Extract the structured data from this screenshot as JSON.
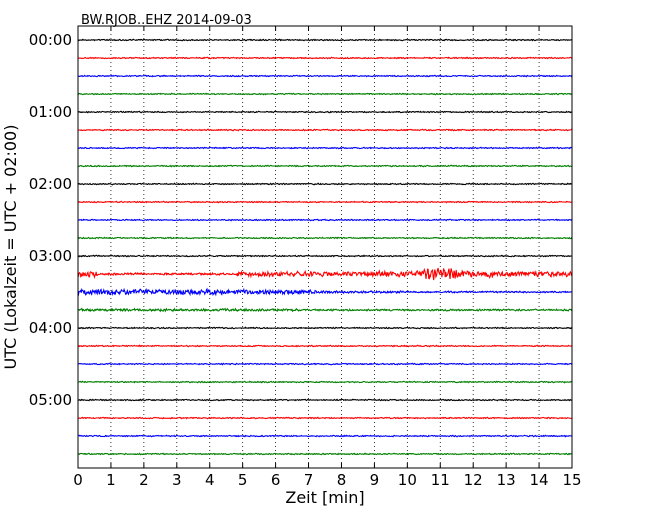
{
  "chart_data": {
    "type": "line",
    "title": "BW.RJOB..EHZ 2014-09-03",
    "xlabel": "Zeit  [min]",
    "ylabel": "UTC (Lokalzeit = UTC + 02:00)",
    "xlim": [
      0,
      15
    ],
    "x_ticks": [
      "0",
      "1",
      "2",
      "3",
      "4",
      "5",
      "6",
      "7",
      "8",
      "9",
      "10",
      "11",
      "12",
      "13",
      "14",
      "15"
    ],
    "y_tick_labels": [
      "00:00",
      "01:00",
      "02:00",
      "03:00",
      "04:00",
      "05:00"
    ],
    "grid": "vertical-dotted",
    "trace_interval_minutes": 15,
    "colors": [
      "#000000",
      "#ff0000",
      "#0000ff",
      "#008000"
    ],
    "traces": [
      {
        "start": "00:00",
        "color": "#000000",
        "level": 1
      },
      {
        "start": "00:15",
        "color": "#ff0000",
        "level": 1
      },
      {
        "start": "00:30",
        "color": "#0000ff",
        "level": 1
      },
      {
        "start": "00:45",
        "color": "#008000",
        "level": 1
      },
      {
        "start": "01:00",
        "color": "#000000",
        "level": 1
      },
      {
        "start": "01:15",
        "color": "#ff0000",
        "level": 1
      },
      {
        "start": "01:30",
        "color": "#0000ff",
        "level": 1
      },
      {
        "start": "01:45",
        "color": "#008000",
        "level": 1
      },
      {
        "start": "02:00",
        "color": "#000000",
        "level": 1
      },
      {
        "start": "02:15",
        "color": "#ff0000",
        "level": 1
      },
      {
        "start": "02:30",
        "color": "#0000ff",
        "level": 1
      },
      {
        "start": "02:45",
        "color": "#008000",
        "level": 1
      },
      {
        "start": "03:00",
        "color": "#000000",
        "level": 1
      },
      {
        "start": "03:15",
        "color": "#ff0000",
        "level": 5
      },
      {
        "start": "03:30",
        "color": "#0000ff",
        "level": 3
      },
      {
        "start": "03:45",
        "color": "#008000",
        "level": 1.5
      },
      {
        "start": "04:00",
        "color": "#000000",
        "level": 1
      },
      {
        "start": "04:15",
        "color": "#ff0000",
        "level": 1
      },
      {
        "start": "04:30",
        "color": "#0000ff",
        "level": 1
      },
      {
        "start": "04:45",
        "color": "#008000",
        "level": 1
      },
      {
        "start": "05:00",
        "color": "#000000",
        "level": 1
      },
      {
        "start": "05:15",
        "color": "#ff0000",
        "level": 1
      },
      {
        "start": "05:30",
        "color": "#0000ff",
        "level": 1
      },
      {
        "start": "05:45",
        "color": "#008000",
        "level": 1
      }
    ]
  }
}
